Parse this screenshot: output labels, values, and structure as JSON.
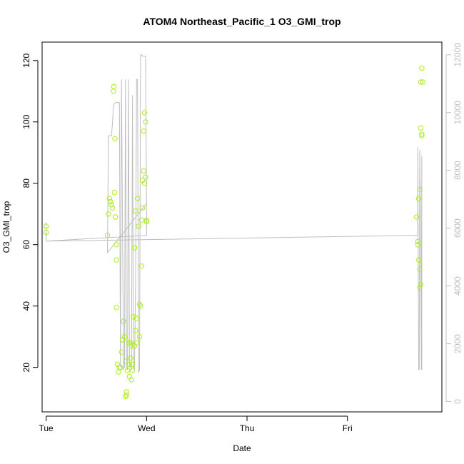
{
  "chart_data": {
    "type": "scatter",
    "title": "ATOM4 Northeast_Pacific_1 O3_GMI_trop",
    "xlabel": "Date",
    "ylabel": "O3_GMI_trop",
    "x_ticks": [
      "Tue",
      "Wed",
      "Thu",
      "Fri"
    ],
    "xlim": [
      -0.04,
      3.94
    ],
    "ylim": [
      5.5,
      126
    ],
    "y_ticks": [
      20,
      40,
      60,
      80,
      100,
      120
    ],
    "y2lim": [
      -360,
      12440
    ],
    "y2_ticks": [
      0,
      2000,
      4000,
      6000,
      8000,
      10000,
      12000
    ],
    "grid": false,
    "colors": {
      "points": "#aaee22",
      "line": "#bebebe",
      "axis": "#000000",
      "right_axis": "#bebebe"
    },
    "series": [
      {
        "values_axis": "left",
        "mark": "points",
        "x": [
          0.0,
          0.0,
          0.61,
          0.62,
          0.63,
          0.64,
          0.65,
          0.66,
          0.67,
          0.675,
          0.68,
          0.685,
          0.69,
          0.7,
          0.7,
          0.7,
          0.71,
          0.72,
          0.73,
          0.74,
          0.75,
          0.76,
          0.77,
          0.78,
          0.79,
          0.79,
          0.8,
          0.8,
          0.81,
          0.82,
          0.82,
          0.83,
          0.84,
          0.84,
          0.85,
          0.85,
          0.86,
          0.86,
          0.87,
          0.88,
          0.88,
          0.89,
          0.89,
          0.9,
          0.9,
          0.91,
          0.92,
          0.93,
          0.93,
          0.94,
          0.95,
          0.95,
          0.96,
          0.96,
          0.97,
          0.97,
          0.98,
          0.98,
          0.99,
          0.99,
          1.0,
          1.0,
          3.69,
          3.7,
          3.7,
          3.71,
          3.71,
          3.72,
          3.72,
          3.72,
          3.73,
          3.73,
          3.73,
          3.74,
          3.74,
          3.74,
          3.75
        ],
        "y": [
          66,
          64,
          63,
          70,
          75,
          74,
          73,
          72,
          110,
          111.5,
          77,
          94.5,
          69,
          60,
          55,
          39.5,
          21,
          18.5,
          20,
          20,
          25,
          29,
          35,
          30,
          22,
          10.5,
          12,
          11,
          19,
          21,
          28,
          17,
          28,
          23,
          16,
          27,
          19,
          21,
          36.5,
          27,
          59,
          71,
          32,
          28,
          36,
          75,
          66,
          30,
          40.5,
          40,
          68,
          53,
          81,
          72,
          84,
          97,
          80,
          103,
          82,
          100,
          67.5,
          68,
          69,
          61,
          60,
          75,
          55,
          52,
          78,
          46,
          47,
          113,
          98,
          96,
          95.5,
          117.5,
          113
        ]
      },
      {
        "values_axis": "right",
        "mark": "line",
        "x": [
          0.0,
          0.0,
          1.0,
          1.0,
          0.61,
          0.62,
          0.625,
          0.63,
          0.65,
          0.66,
          0.67,
          0.68,
          0.69,
          0.7,
          0.71,
          0.73,
          0.74,
          0.75,
          0.77,
          0.78,
          0.79,
          0.8,
          0.81,
          0.82,
          0.83,
          0.84,
          0.85,
          0.86,
          0.87,
          0.88,
          0.89,
          0.9,
          0.91,
          0.92,
          0.93,
          0.94,
          0.95,
          0.96,
          0.97,
          0.98,
          0.99,
          1.0,
          1.0,
          0.0,
          3.7,
          3.7,
          3.71,
          3.715,
          3.72,
          3.73,
          3.735,
          3.74,
          3.74
        ],
        "y": [
          6200,
          5550,
          5750,
          6850,
          5150,
          9200,
          9200,
          9200,
          9200,
          9600,
          10250,
          10300,
          10350,
          10350,
          10350,
          10350,
          1200,
          11150,
          1100,
          1200,
          11150,
          1200,
          1100,
          11150,
          1200,
          1200,
          1100,
          10600,
          1200,
          1100,
          4000,
          11150,
          11150,
          1000,
          1100,
          12000,
          12000,
          11950,
          11950,
          11950,
          11950,
          6850,
          5750,
          5550,
          5750,
          8800,
          1100,
          1100,
          8700,
          4600,
          1100,
          8500,
          1100
        ]
      }
    ]
  }
}
